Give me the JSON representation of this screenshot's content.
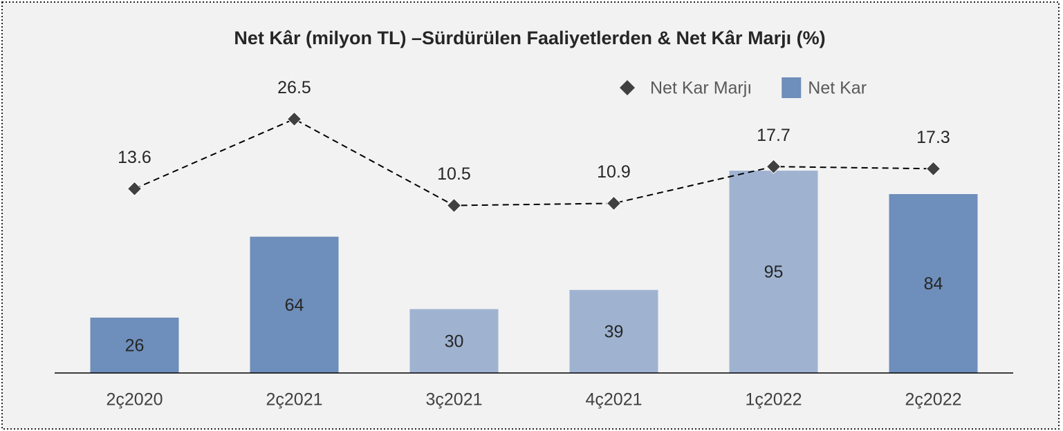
{
  "chart_data": {
    "type": "bar+line",
    "title": "Net Kâr (milyon TL) –Sürdürülen Faaliyetlerden & Net Kâr Marjı (%)",
    "categories": [
      "2ç2020",
      "2ç2021",
      "3ç2021",
      "4ç2021",
      "1ç2022",
      "2ç2022"
    ],
    "series": [
      {
        "name": "Net Kar",
        "type": "bar",
        "color": "#6e8ebb",
        "colors": [
          "#6e8ebb",
          "#6e8ebb",
          "#9fb3d1",
          "#9fb3d1",
          "#9fb3d1",
          "#6e8ebb"
        ],
        "values": [
          26,
          64,
          30,
          39,
          95,
          84
        ]
      },
      {
        "name": "Net Kar Marjı",
        "type": "line",
        "axis": "y2",
        "color": "#404040",
        "values": [
          13.6,
          26.5,
          10.5,
          10.9,
          17.7,
          17.3
        ]
      }
    ],
    "ylim": [
      0,
      120
    ],
    "y2lim": [
      -20.5,
      26.8
    ],
    "legend": "top-right"
  }
}
